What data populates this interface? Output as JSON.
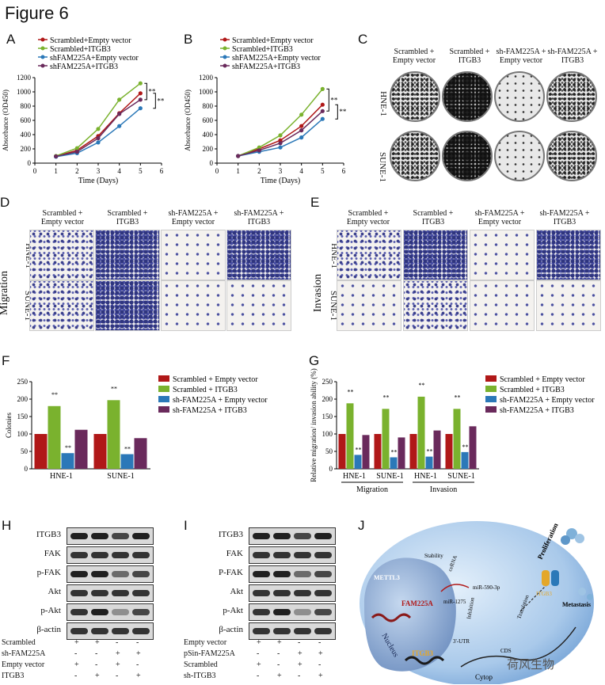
{
  "figure_title": "Figure 6",
  "panel_letters": [
    "A",
    "B",
    "C",
    "D",
    "E",
    "F",
    "G",
    "H",
    "I",
    "J"
  ],
  "legend_series": [
    "Scrambled+Empty vector",
    "Scrambled+ITGB3",
    "shFAM225A+Empty vector",
    "shFAM225A+ITGB3"
  ],
  "series_colors": {
    "s1": "#b01818",
    "s2": "#7ab22e",
    "s3": "#2b78b8",
    "s4": "#6a2a5c"
  },
  "chart_data": [
    {
      "panel": "A",
      "type": "line",
      "xlabel": "Time (Days)",
      "ylabel": "Absorbance (OD450)",
      "x": [
        1,
        2,
        3,
        4,
        5
      ],
      "xlim": [
        0,
        6
      ],
      "ylim": [
        0,
        1200
      ],
      "yticks": [
        0,
        200,
        400,
        600,
        800,
        1000,
        1200
      ],
      "xticks": [
        0,
        1,
        2,
        3,
        4,
        5,
        6
      ],
      "series": [
        {
          "name": "Scrambled+Empty vector",
          "values": [
            95,
            180,
            380,
            700,
            980
          ]
        },
        {
          "name": "Scrambled+ITGB3",
          "values": [
            100,
            210,
            480,
            890,
            1120
          ]
        },
        {
          "name": "shFAM225A+Empty vector",
          "values": [
            90,
            140,
            290,
            520,
            770
          ]
        },
        {
          "name": "shFAM225A+ITGB3",
          "values": [
            95,
            160,
            350,
            690,
            890
          ]
        }
      ],
      "annotations": [
        "**",
        "**"
      ]
    },
    {
      "panel": "B",
      "type": "line",
      "xlabel": "Time (Days)",
      "ylabel": "Absorbance (OD450)",
      "x": [
        1,
        2,
        3,
        4,
        5
      ],
      "xlim": [
        0,
        6
      ],
      "ylim": [
        0,
        1200
      ],
      "yticks": [
        0,
        200,
        400,
        600,
        800,
        1000,
        1200
      ],
      "xticks": [
        0,
        1,
        2,
        3,
        4,
        5,
        6
      ],
      "series": [
        {
          "name": "Scrambled+Empty vector",
          "values": [
            100,
            200,
            320,
            520,
            820
          ]
        },
        {
          "name": "Scrambled+ITGB3",
          "values": [
            100,
            220,
            390,
            680,
            1040
          ]
        },
        {
          "name": "shFAM225A+Empty vector",
          "values": [
            100,
            160,
            220,
            360,
            620
          ]
        },
        {
          "name": "shFAM225A+ITGB3",
          "values": [
            100,
            180,
            280,
            460,
            730
          ]
        }
      ],
      "annotations": [
        "**",
        "**"
      ]
    },
    {
      "panel": "F",
      "type": "bar",
      "ylabel": "Colonies",
      "ylim": [
        0,
        250
      ],
      "yticks": [
        0,
        50,
        100,
        150,
        200,
        250
      ],
      "categories": [
        "HNE-1",
        "SUNE-1"
      ],
      "series": [
        {
          "name": "Scrambled + Empty vector",
          "values": [
            100,
            100
          ]
        },
        {
          "name": "Scrambled + ITGB3",
          "values": [
            180,
            197
          ]
        },
        {
          "name": "sh-FAM225A + Empty vector",
          "values": [
            45,
            42
          ]
        },
        {
          "name": "sh-FAM225A + ITGB3",
          "values": [
            112,
            88
          ]
        }
      ],
      "annotations": [
        "**"
      ]
    },
    {
      "panel": "G",
      "type": "bar",
      "ylabel": "Relative migration/ invasion ability (%)",
      "ylim": [
        0,
        250
      ],
      "yticks": [
        0,
        50,
        100,
        150,
        200,
        250
      ],
      "categories": [
        "HNE-1",
        "SUNE-1",
        "HNE-1",
        "SUNE-1"
      ],
      "groups": [
        "Migration",
        "Invasion"
      ],
      "series": [
        {
          "name": "Scrambled + Empty vector",
          "values": [
            100,
            100,
            100,
            100
          ]
        },
        {
          "name": "Scrambled + ITGB3",
          "values": [
            188,
            172,
            207,
            172
          ]
        },
        {
          "name": "sh-FAM225A + Empty vector",
          "values": [
            40,
            33,
            35,
            48
          ]
        },
        {
          "name": "sh-FAM225A + ITGB3",
          "values": [
            97,
            90,
            110,
            122
          ]
        }
      ],
      "annotations": [
        "**"
      ]
    }
  ],
  "panel_c": {
    "columns": [
      "Scrambled +\nEmpty vector",
      "Scrambled +\nITGB3",
      "sh-FAM225A +\nEmpty vector",
      "sh-FAM225A +\nITGB3"
    ],
    "rows": [
      "HNE-1",
      "SUNE-1"
    ]
  },
  "panel_d": {
    "side_label": "Migration",
    "columns": [
      "Scrambled +\nEmpty vector",
      "Scrambled +\nITGB3",
      "sh-FAM225A +\nEmpty vector",
      "sh-FAM225A +\nITGB3"
    ],
    "rows": [
      "HNE-1",
      "SUNE-1"
    ]
  },
  "panel_e": {
    "side_label": "Invasion",
    "columns": [
      "Scrambled +\nEmpty vector",
      "Scrambled +\nITGB3",
      "sh-FAM225A +\nEmpty vector",
      "sh-FAM225A +\nITGB3"
    ],
    "rows": [
      "HNE-1",
      "SUNE-1"
    ]
  },
  "panel_h": {
    "proteins": [
      "ITGB3",
      "FAK",
      "p-FAK",
      "Akt",
      "p-Akt",
      "β-actin"
    ],
    "conditions": [
      {
        "label": "Scrambled",
        "signs": [
          "+",
          "+",
          "-",
          "-"
        ]
      },
      {
        "label": "sh-FAM225A",
        "signs": [
          "-",
          "-",
          "+",
          "+"
        ]
      },
      {
        "label": "Empty vector",
        "signs": [
          "+",
          "-",
          "+",
          "-"
        ]
      },
      {
        "label": "ITGB3",
        "signs": [
          "-",
          "+",
          "-",
          "+"
        ]
      }
    ]
  },
  "panel_i": {
    "proteins": [
      "ITGB3",
      "FAK",
      "P-FAK",
      "Akt",
      "p-Akt",
      "β-actin"
    ],
    "conditions": [
      {
        "label": "Empty vector",
        "signs": [
          "+",
          "+",
          "-",
          "-"
        ]
      },
      {
        "label": "pSin-FAM225A",
        "signs": [
          "-",
          "-",
          "+",
          "+"
        ]
      },
      {
        "label": "Scrambled",
        "signs": [
          "+",
          "-",
          "+",
          "-"
        ]
      },
      {
        "label": "sh-ITGB3",
        "signs": [
          "-",
          "+",
          "-",
          "+"
        ]
      }
    ]
  },
  "panel_j": {
    "labels": [
      "METTL3",
      "FAM225A",
      "Stability",
      "ceRNA",
      "miR-1275",
      "miR-590-3p",
      "Inhibition",
      "Translation",
      "ITGB3",
      "3'-UTR",
      "CDS",
      "Nucleus",
      "Cytop",
      "Proliferation",
      "Metastasis",
      "ITGB3"
    ]
  },
  "watermark": "荷风生物"
}
